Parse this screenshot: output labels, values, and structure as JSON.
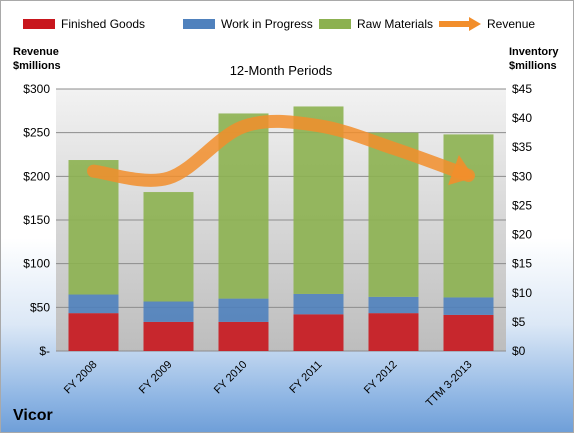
{
  "chart_data": {
    "type": "bar",
    "title": "12-Month Periods",
    "company": "Vicor",
    "categories": [
      "FY 2008",
      "FY 2009",
      "FY 2010",
      "FY 2011",
      "FY 2012",
      "TTM 3-2013"
    ],
    "series": [
      {
        "name": "Finished Goods",
        "axis": "right",
        "stacked": true,
        "color": "#c8161d",
        "values": [
          6.5,
          5.0,
          5.0,
          6.3,
          6.5,
          6.2
        ]
      },
      {
        "name": "Work in Progress",
        "axis": "right",
        "stacked": true,
        "color": "#4f81bd",
        "values": [
          3.2,
          3.5,
          4.0,
          3.5,
          2.8,
          3.0
        ]
      },
      {
        "name": "Raw Materials",
        "axis": "right",
        "stacked": true,
        "color": "#8cb150",
        "values": [
          23.1,
          18.8,
          31.8,
          32.2,
          28.2,
          28.0
        ]
      },
      {
        "name": "Revenue",
        "axis": "left",
        "type": "line",
        "color": "#f28e2b",
        "values": [
          206,
          198,
          257,
          258,
          232,
          201
        ]
      }
    ],
    "left_axis": {
      "label_line1": "Revenue",
      "label_line2": "$millions",
      "ylim": [
        0,
        300
      ],
      "ticks": [
        {
          "v": 0,
          "label": "$-"
        },
        {
          "v": 50,
          "label": "$50"
        },
        {
          "v": 100,
          "label": "$100"
        },
        {
          "v": 150,
          "label": "$150"
        },
        {
          "v": 200,
          "label": "$200"
        },
        {
          "v": 250,
          "label": "$250"
        },
        {
          "v": 300,
          "label": "$300"
        }
      ]
    },
    "right_axis": {
      "label_line1": "Inventory",
      "label_line2": "$millions",
      "ylim": [
        0,
        45
      ],
      "ticks": [
        {
          "v": 0,
          "label": "$0"
        },
        {
          "v": 5,
          "label": "$5"
        },
        {
          "v": 10,
          "label": "$10"
        },
        {
          "v": 15,
          "label": "$15"
        },
        {
          "v": 20,
          "label": "$20"
        },
        {
          "v": 25,
          "label": "$25"
        },
        {
          "v": 30,
          "label": "$30"
        },
        {
          "v": 35,
          "label": "$35"
        },
        {
          "v": 40,
          "label": "$40"
        },
        {
          "v": 45,
          "label": "$45"
        }
      ]
    },
    "grid": true,
    "legend": "top"
  }
}
